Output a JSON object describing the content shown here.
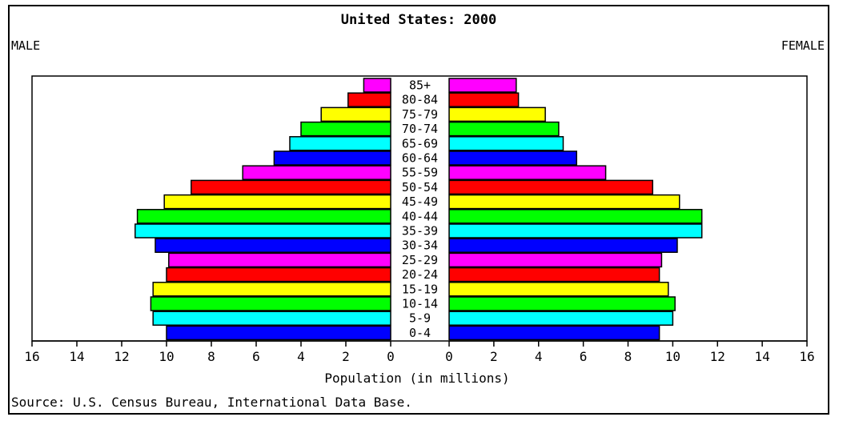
{
  "chart_data": {
    "type": "bar",
    "title": "United States: 2000",
    "left_label": "MALE",
    "right_label": "FEMALE",
    "xlabel": "Population (in millions)",
    "source": "Source: U.S. Census Bureau, International Data Base.",
    "xlim": [
      0,
      16
    ],
    "ticks": [
      "0",
      "2",
      "4",
      "6",
      "8",
      "10",
      "12",
      "14",
      "16"
    ],
    "categories": [
      "85+",
      "80-84",
      "75-79",
      "70-74",
      "65-69",
      "60-64",
      "55-59",
      "50-54",
      "45-49",
      "40-44",
      "35-39",
      "30-34",
      "25-29",
      "20-24",
      "15-19",
      "10-14",
      "5-9",
      "0-4"
    ],
    "series": [
      {
        "name": "MALE",
        "values": [
          1.2,
          1.9,
          3.1,
          4.0,
          4.5,
          5.2,
          6.6,
          8.9,
          10.1,
          11.3,
          11.4,
          10.5,
          9.9,
          10.0,
          10.6,
          10.7,
          10.6,
          10.0
        ]
      },
      {
        "name": "FEMALE",
        "values": [
          3.0,
          3.1,
          4.3,
          4.9,
          5.1,
          5.7,
          7.0,
          9.1,
          10.3,
          11.3,
          11.3,
          10.2,
          9.5,
          9.4,
          9.8,
          10.1,
          10.0,
          9.4
        ]
      }
    ],
    "colors": [
      "#ff00ff",
      "#ff0000",
      "#ffff00",
      "#00ff00",
      "#00ffff",
      "#0000ff"
    ]
  }
}
